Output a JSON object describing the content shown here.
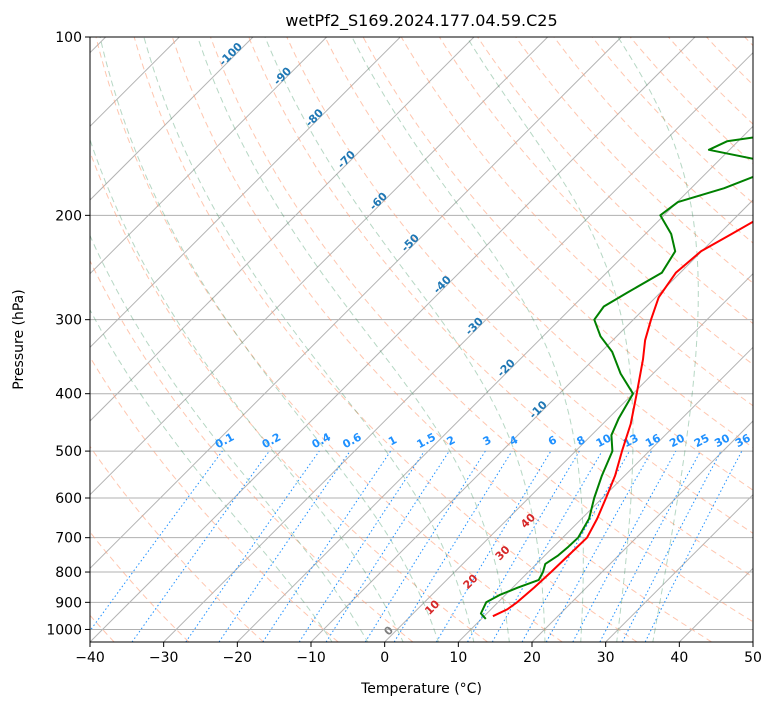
{
  "chart_data": {
    "type": "line",
    "title": "wetPf2_S169.2024.177.04.59.C25",
    "xlabel": "Temperature (°C)",
    "ylabel": "Pressure (hPa)",
    "xlim": [
      -40,
      50
    ],
    "ylim": [
      1050,
      100
    ],
    "y_scale": "log",
    "grid": true,
    "x_ticks": [
      "−40",
      "−30",
      "−20",
      "−10",
      "0",
      "10",
      "20",
      "30",
      "40",
      "50"
    ],
    "y_ticks": [
      "100",
      "200",
      "300",
      "400",
      "500",
      "600",
      "700",
      "800",
      "900",
      "1000"
    ],
    "dry_adiabat_labels": [
      "-100",
      "-90",
      "-80",
      "-70",
      "-60",
      "-50",
      "-40",
      "-30",
      "-20",
      "-10",
      "0",
      "10",
      "20",
      "30",
      "40"
    ],
    "mixing_ratio_labels": [
      "0.1",
      "0.2",
      "0.4",
      "0.6",
      "1",
      "1.5",
      "2",
      "3",
      "4",
      "6",
      "8",
      "10",
      "13",
      "16",
      "20",
      "25",
      "30",
      "36"
    ],
    "series": [
      {
        "role": "temperature",
        "color": "#ff0000",
        "points": [
          [
            950,
            11.2
          ],
          [
            925,
            12.2
          ],
          [
            900,
            12.6
          ],
          [
            850,
            12.9
          ],
          [
            800,
            13.1
          ],
          [
            750,
            13.2
          ],
          [
            700,
            13.3
          ],
          [
            650,
            12.1
          ],
          [
            600,
            10.5
          ],
          [
            550,
            8.7
          ],
          [
            500,
            6.3
          ],
          [
            450,
            3.8
          ],
          [
            400,
            0.5
          ],
          [
            350,
            -3.3
          ],
          [
            325,
            -5.6
          ],
          [
            300,
            -7.6
          ],
          [
            275,
            -9.6
          ],
          [
            250,
            -10.6
          ],
          [
            230,
            -10.1
          ],
          [
            215,
            -8.3
          ],
          [
            200,
            -6.4
          ],
          [
            185,
            -5.2
          ],
          [
            170,
            -3.0
          ],
          [
            160,
            -0.8
          ],
          [
            150,
            -0.5
          ],
          [
            140,
            -0.2
          ],
          [
            130,
            0.3
          ],
          [
            120,
            1.0
          ],
          [
            110,
            2.9
          ],
          [
            100,
            4.5
          ]
        ]
      },
      {
        "role": "dewpoint",
        "color": "#008000",
        "points": [
          [
            960,
            10.6
          ],
          [
            940,
            9.2
          ],
          [
            920,
            8.8
          ],
          [
            900,
            8.4
          ],
          [
            875,
            9.2
          ],
          [
            850,
            10.7
          ],
          [
            825,
            12.5
          ],
          [
            800,
            12.0
          ],
          [
            775,
            11.2
          ],
          [
            750,
            11.8
          ],
          [
            725,
            12.0
          ],
          [
            700,
            12.1
          ],
          [
            650,
            11.0
          ],
          [
            600,
            8.9
          ],
          [
            550,
            6.9
          ],
          [
            500,
            5.0
          ],
          [
            470,
            2.7
          ],
          [
            440,
            1.4
          ],
          [
            400,
            0.0
          ],
          [
            370,
            -4.4
          ],
          [
            340,
            -8.5
          ],
          [
            320,
            -12.2
          ],
          [
            300,
            -15.3
          ],
          [
            285,
            -15.8
          ],
          [
            270,
            -14.5
          ],
          [
            250,
            -12.5
          ],
          [
            230,
            -13.6
          ],
          [
            215,
            -16.5
          ],
          [
            200,
            -20.5
          ],
          [
            190,
            -19.9
          ],
          [
            180,
            -15.5
          ],
          [
            170,
            -12.4
          ],
          [
            162,
            -13.7
          ],
          [
            155,
            -22.8
          ],
          [
            150,
            -21.5
          ],
          [
            145,
            -14.5
          ],
          [
            140,
            -10.0
          ],
          [
            135,
            -7.5
          ],
          [
            130,
            -7.0
          ],
          [
            125,
            -7.2
          ],
          [
            120,
            -7.4
          ],
          [
            110,
            -7.2
          ],
          [
            100,
            -6.3
          ]
        ]
      }
    ]
  }
}
